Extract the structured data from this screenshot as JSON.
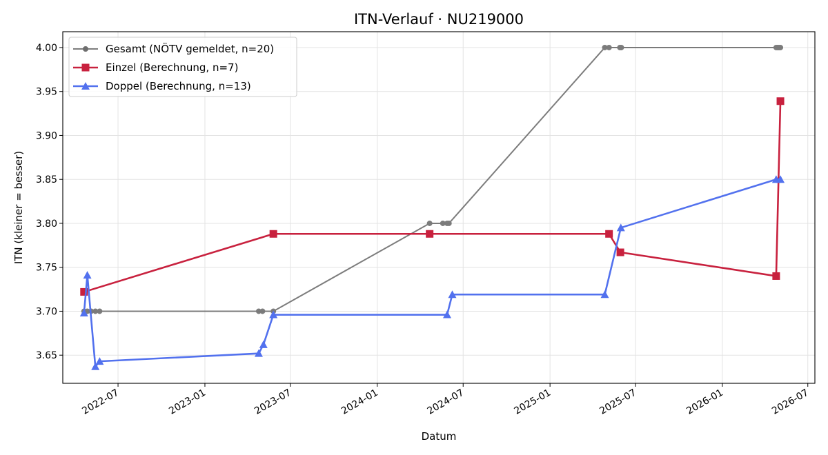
{
  "chart_data": {
    "type": "line",
    "title": "ITN-Verlauf · NU219000",
    "xlabel": "Datum",
    "ylabel": "ITN  (kleiner = besser)",
    "xlim": [
      "2022-03-06",
      "2026-07-16"
    ],
    "ylim": [
      3.618,
      4.018
    ],
    "x_ticks": [
      "2022-07",
      "2023-01",
      "2023-07",
      "2024-01",
      "2024-07",
      "2025-01",
      "2025-07",
      "2026-01",
      "2026-07"
    ],
    "y_ticks": [
      3.65,
      3.7,
      3.75,
      3.8,
      3.85,
      3.9,
      3.95,
      4.0
    ],
    "grid": true,
    "legend_position": "top-left",
    "series": [
      {
        "name": "Gesamt (NÖTV gemeldet, n=20)",
        "color": "#6e6e6e",
        "marker": "circle",
        "points": [
          {
            "x": "2022-04-20",
            "y": 3.7
          },
          {
            "x": "2022-04-27",
            "y": 3.7
          },
          {
            "x": "2022-05-05",
            "y": 3.7
          },
          {
            "x": "2022-05-14",
            "y": 3.7
          },
          {
            "x": "2022-05-23",
            "y": 3.7
          },
          {
            "x": "2023-04-25",
            "y": 3.7
          },
          {
            "x": "2023-05-03",
            "y": 3.7
          },
          {
            "x": "2023-05-26",
            "y": 3.7
          },
          {
            "x": "2024-04-21",
            "y": 3.8
          },
          {
            "x": "2024-05-19",
            "y": 3.8
          },
          {
            "x": "2024-05-28",
            "y": 3.8
          },
          {
            "x": "2024-06-01",
            "y": 3.8
          },
          {
            "x": "2025-04-27",
            "y": 4.0
          },
          {
            "x": "2025-05-06",
            "y": 4.0
          },
          {
            "x": "2025-05-29",
            "y": 4.0
          },
          {
            "x": "2025-06-01",
            "y": 4.0
          },
          {
            "x": "2026-04-25",
            "y": 4.0
          },
          {
            "x": "2026-04-28",
            "y": 4.0
          },
          {
            "x": "2026-05-01",
            "y": 4.0
          },
          {
            "x": "2026-05-04",
            "y": 4.0
          }
        ]
      },
      {
        "name": "Einzel (Berechnung, n=7)",
        "color": "#c8213e",
        "marker": "square",
        "points": [
          {
            "x": "2022-04-20",
            "y": 3.722
          },
          {
            "x": "2023-05-26",
            "y": 3.788
          },
          {
            "x": "2024-04-21",
            "y": 3.788
          },
          {
            "x": "2025-05-06",
            "y": 3.788
          },
          {
            "x": "2025-05-30",
            "y": 3.767
          },
          {
            "x": "2026-04-25",
            "y": 3.74
          },
          {
            "x": "2026-05-04",
            "y": 3.939
          }
        ]
      },
      {
        "name": "Doppel (Berechnung, n=13)",
        "color": "#5271ee",
        "marker": "triangle",
        "points": [
          {
            "x": "2022-04-20",
            "y": 3.698
          },
          {
            "x": "2022-04-27",
            "y": 3.741
          },
          {
            "x": "2022-05-14",
            "y": 3.637
          },
          {
            "x": "2022-05-23",
            "y": 3.643
          },
          {
            "x": "2023-04-25",
            "y": 3.652
          },
          {
            "x": "2023-05-05",
            "y": 3.662
          },
          {
            "x": "2023-05-26",
            "y": 3.696
          },
          {
            "x": "2024-05-28",
            "y": 3.696
          },
          {
            "x": "2024-06-08",
            "y": 3.719
          },
          {
            "x": "2025-04-27",
            "y": 3.719
          },
          {
            "x": "2025-05-31",
            "y": 3.795
          },
          {
            "x": "2026-04-25",
            "y": 3.85
          },
          {
            "x": "2026-05-04",
            "y": 3.85
          }
        ]
      }
    ]
  }
}
